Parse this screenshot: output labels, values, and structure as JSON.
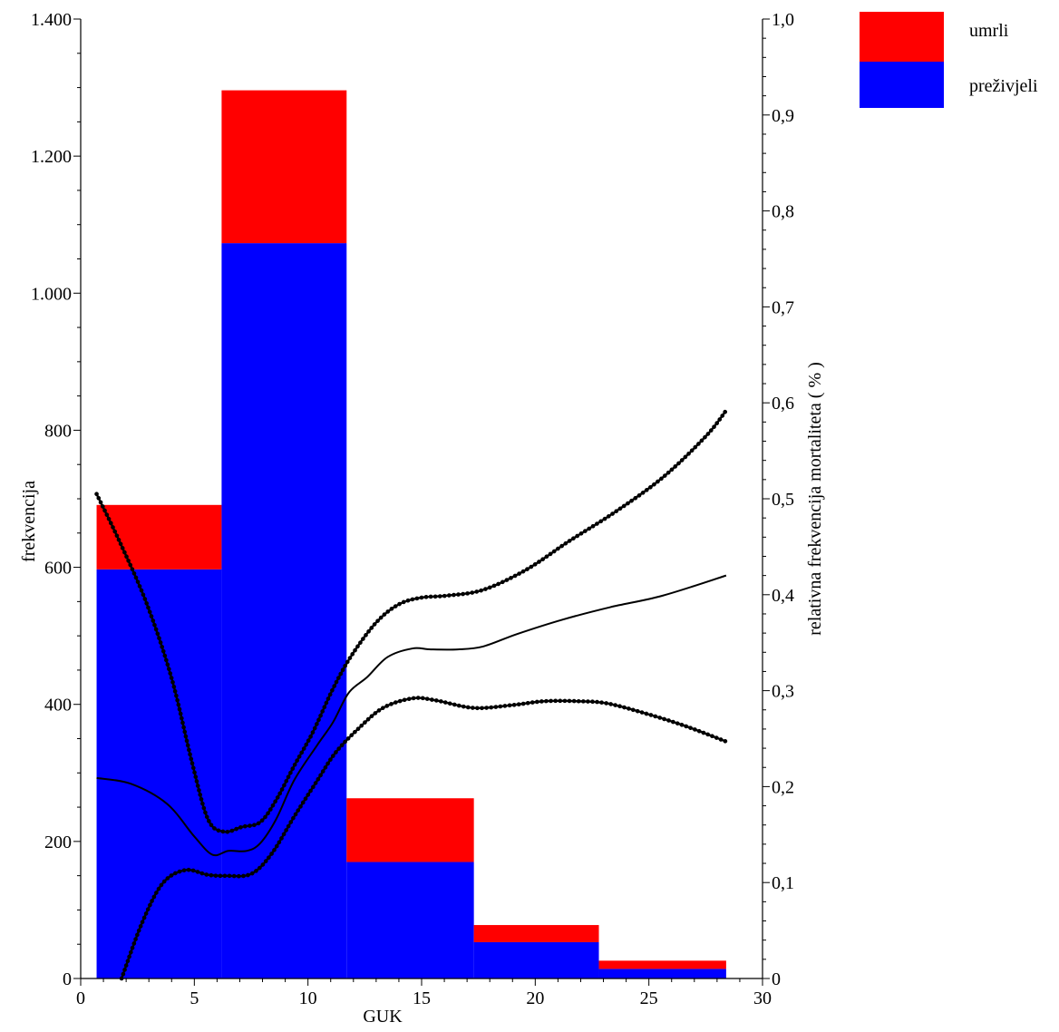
{
  "chart_data": {
    "type": "bar",
    "stacked": true,
    "bins": [
      {
        "x_start": 0.7,
        "x_end": 6.2,
        "prezivjeli": 597,
        "umrli": 94
      },
      {
        "x_start": 6.2,
        "x_end": 11.7,
        "prezivjeli": 1073,
        "umrli": 223
      },
      {
        "x_start": 11.7,
        "x_end": 17.3,
        "prezivjeli": 170,
        "umrli": 93
      },
      {
        "x_start": 17.3,
        "x_end": 22.8,
        "prezivjeli": 53,
        "umrli": 25
      },
      {
        "x_start": 22.8,
        "x_end": 28.4,
        "prezivjeli": 14,
        "umrli": 12
      }
    ],
    "series": [
      {
        "name": "umrli",
        "color": "#ff0000"
      },
      {
        "name": "preživjeli",
        "color": "#0000ff"
      }
    ],
    "lines": [
      {
        "role": "estimate",
        "style": "solid",
        "axis": "right",
        "points": [
          [
            0.7,
            0.209
          ],
          [
            2.2,
            0.203
          ],
          [
            3.8,
            0.182
          ],
          [
            5.0,
            0.148
          ],
          [
            5.8,
            0.129
          ],
          [
            6.5,
            0.133
          ],
          [
            7.3,
            0.133
          ],
          [
            7.9,
            0.141
          ],
          [
            8.6,
            0.166
          ],
          [
            9.4,
            0.207
          ],
          [
            10.4,
            0.243
          ],
          [
            11.1,
            0.267
          ],
          [
            11.8,
            0.298
          ],
          [
            12.6,
            0.314
          ],
          [
            13.5,
            0.335
          ],
          [
            14.6,
            0.344
          ],
          [
            15.4,
            0.343
          ],
          [
            16.6,
            0.343
          ],
          [
            17.7,
            0.346
          ],
          [
            19.2,
            0.359
          ],
          [
            21.2,
            0.374
          ],
          [
            23.3,
            0.387
          ],
          [
            25.6,
            0.399
          ],
          [
            28.4,
            0.42
          ]
        ]
      },
      {
        "role": "upper_bound",
        "style": "dotted",
        "axis": "right",
        "points": [
          [
            0.7,
            0.505
          ],
          [
            1.7,
            0.456
          ],
          [
            2.9,
            0.391
          ],
          [
            4.0,
            0.313
          ],
          [
            4.9,
            0.225
          ],
          [
            5.6,
            0.166
          ],
          [
            6.3,
            0.153
          ],
          [
            7.1,
            0.158
          ],
          [
            7.9,
            0.163
          ],
          [
            8.6,
            0.186
          ],
          [
            9.4,
            0.222
          ],
          [
            10.2,
            0.256
          ],
          [
            11.1,
            0.302
          ],
          [
            11.9,
            0.336
          ],
          [
            13.0,
            0.371
          ],
          [
            14.0,
            0.39
          ],
          [
            15.0,
            0.397
          ],
          [
            16.1,
            0.399
          ],
          [
            17.7,
            0.405
          ],
          [
            19.6,
            0.426
          ],
          [
            21.5,
            0.456
          ],
          [
            23.5,
            0.486
          ],
          [
            25.6,
            0.522
          ],
          [
            27.5,
            0.565
          ],
          [
            28.4,
            0.592
          ]
        ]
      },
      {
        "role": "lower_bound",
        "style": "dotted",
        "axis": "right",
        "points": [
          [
            1.8,
            0.0
          ],
          [
            2.7,
            0.058
          ],
          [
            3.6,
            0.099
          ],
          [
            4.6,
            0.113
          ],
          [
            5.6,
            0.108
          ],
          [
            6.4,
            0.107
          ],
          [
            7.5,
            0.109
          ],
          [
            8.4,
            0.13
          ],
          [
            9.4,
            0.169
          ],
          [
            10.4,
            0.206
          ],
          [
            11.2,
            0.235
          ],
          [
            12.2,
            0.26
          ],
          [
            13.3,
            0.282
          ],
          [
            14.6,
            0.292
          ],
          [
            15.6,
            0.29
          ],
          [
            17.3,
            0.282
          ],
          [
            19.0,
            0.285
          ],
          [
            20.4,
            0.289
          ],
          [
            21.9,
            0.289
          ],
          [
            23.1,
            0.287
          ],
          [
            24.6,
            0.278
          ],
          [
            26.5,
            0.264
          ],
          [
            28.4,
            0.247
          ]
        ]
      }
    ],
    "x_axis": {
      "title": "GUK",
      "range": [
        0,
        30
      ],
      "ticks": [
        0,
        5,
        10,
        15,
        20,
        25,
        30
      ]
    },
    "y_left": {
      "title": "frekvencija",
      "range": [
        0,
        1400
      ],
      "ticks": [
        0,
        200,
        400,
        600,
        800,
        1000,
        1200,
        1400
      ],
      "tick_labels": [
        "0",
        "200",
        "400",
        "600",
        "800",
        "1.000",
        "1.200",
        "1.400"
      ]
    },
    "y_right": {
      "title": "relativna frekvencija mortaliteta ( % )",
      "range": [
        0,
        1
      ],
      "ticks": [
        0,
        0.1,
        0.2,
        0.3,
        0.4,
        0.5,
        0.6,
        0.7,
        0.8,
        0.9,
        1.0
      ],
      "tick_labels": [
        "0",
        "0,1",
        "0,2",
        "0,3",
        "0,4",
        "0,5",
        "0,6",
        "0,7",
        "0,8",
        "0,9",
        "1,0"
      ]
    },
    "legend": {
      "placement": "top-right",
      "entries": [
        "umrli",
        "preživjeli"
      ]
    },
    "grid": false
  }
}
